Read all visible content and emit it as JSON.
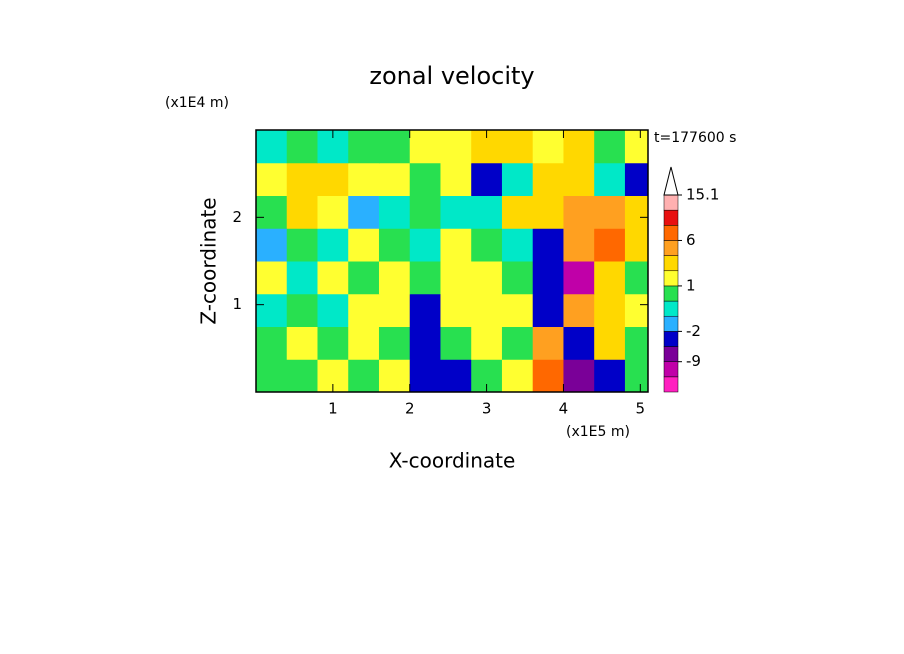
{
  "chart_data": {
    "type": "contour",
    "title": "zonal velocity",
    "x_label": "X-coordinate",
    "y_label": "Z-coordinate",
    "x_unit": "(x1E5 m)",
    "y_unit": "(x1E4 m)",
    "annotation": "t=177600 s",
    "xlim": [
      0,
      5.1
    ],
    "ylim": [
      0,
      3
    ],
    "xticks": [
      1,
      2,
      3,
      4,
      5
    ],
    "yticks": [
      1,
      2
    ],
    "x": [
      0,
      0.4,
      0.8,
      1.2,
      1.6,
      2.0,
      2.4,
      2.8,
      3.2,
      3.6,
      4.0,
      4.4,
      4.8,
      5.1
    ],
    "y": [
      0,
      0.375,
      0.75,
      1.125,
      1.5,
      1.875,
      2.25,
      2.625,
      3
    ],
    "values": [
      [
        0.5,
        0.5,
        1.5,
        0.5,
        1.5,
        -5,
        -3,
        0.5,
        1.5,
        7,
        -8,
        -4,
        0.5
      ],
      [
        0.5,
        1.5,
        0.5,
        1.5,
        0.5,
        -5,
        0.5,
        1.5,
        0.5,
        4,
        -3,
        2.5,
        0.5
      ],
      [
        -0.5,
        0.5,
        -0.5,
        1.5,
        1.5,
        -3,
        1.5,
        1.5,
        1.5,
        -3,
        4,
        2.5,
        1.5
      ],
      [
        1.5,
        -0.5,
        1.5,
        0.5,
        1.5,
        0.5,
        1.5,
        1.5,
        0.5,
        -4,
        -10,
        2.5,
        0.5
      ],
      [
        -1.5,
        0.5,
        -0.5,
        1.5,
        0.5,
        -0.5,
        1.5,
        0.5,
        -0.5,
        -3,
        4,
        7,
        2.5
      ],
      [
        0.5,
        2.5,
        1.5,
        -1.5,
        -0.5,
        0.5,
        -0.5,
        -0.5,
        2.5,
        2.5,
        4,
        4,
        2.5
      ],
      [
        1.5,
        2.5,
        2.5,
        1.5,
        1.5,
        0.5,
        1.5,
        -5,
        -0.5,
        2.5,
        2.5,
        -0.5,
        -5
      ],
      [
        -0.5,
        0.5,
        -0.5,
        0.5,
        0.5,
        1.5,
        1.5,
        2.5,
        2.5,
        1.5,
        2.5,
        0.5,
        1.5
      ]
    ],
    "levels": [
      -15,
      -12,
      -9,
      -6,
      -2,
      -1,
      0,
      1,
      2,
      3,
      6,
      9,
      12,
      15.1
    ],
    "colors": [
      "#ff20c0",
      "#c000a8",
      "#7a0098",
      "#0000c8",
      "#2ab0ff",
      "#00e8c8",
      "#28e050",
      "#ffff30",
      "#ffd800",
      "#ffa020",
      "#ff6800",
      "#e81010",
      "#ffb0b0"
    ],
    "colorbar_ticks": [
      15.1,
      6,
      1,
      -2,
      -9
    ]
  }
}
